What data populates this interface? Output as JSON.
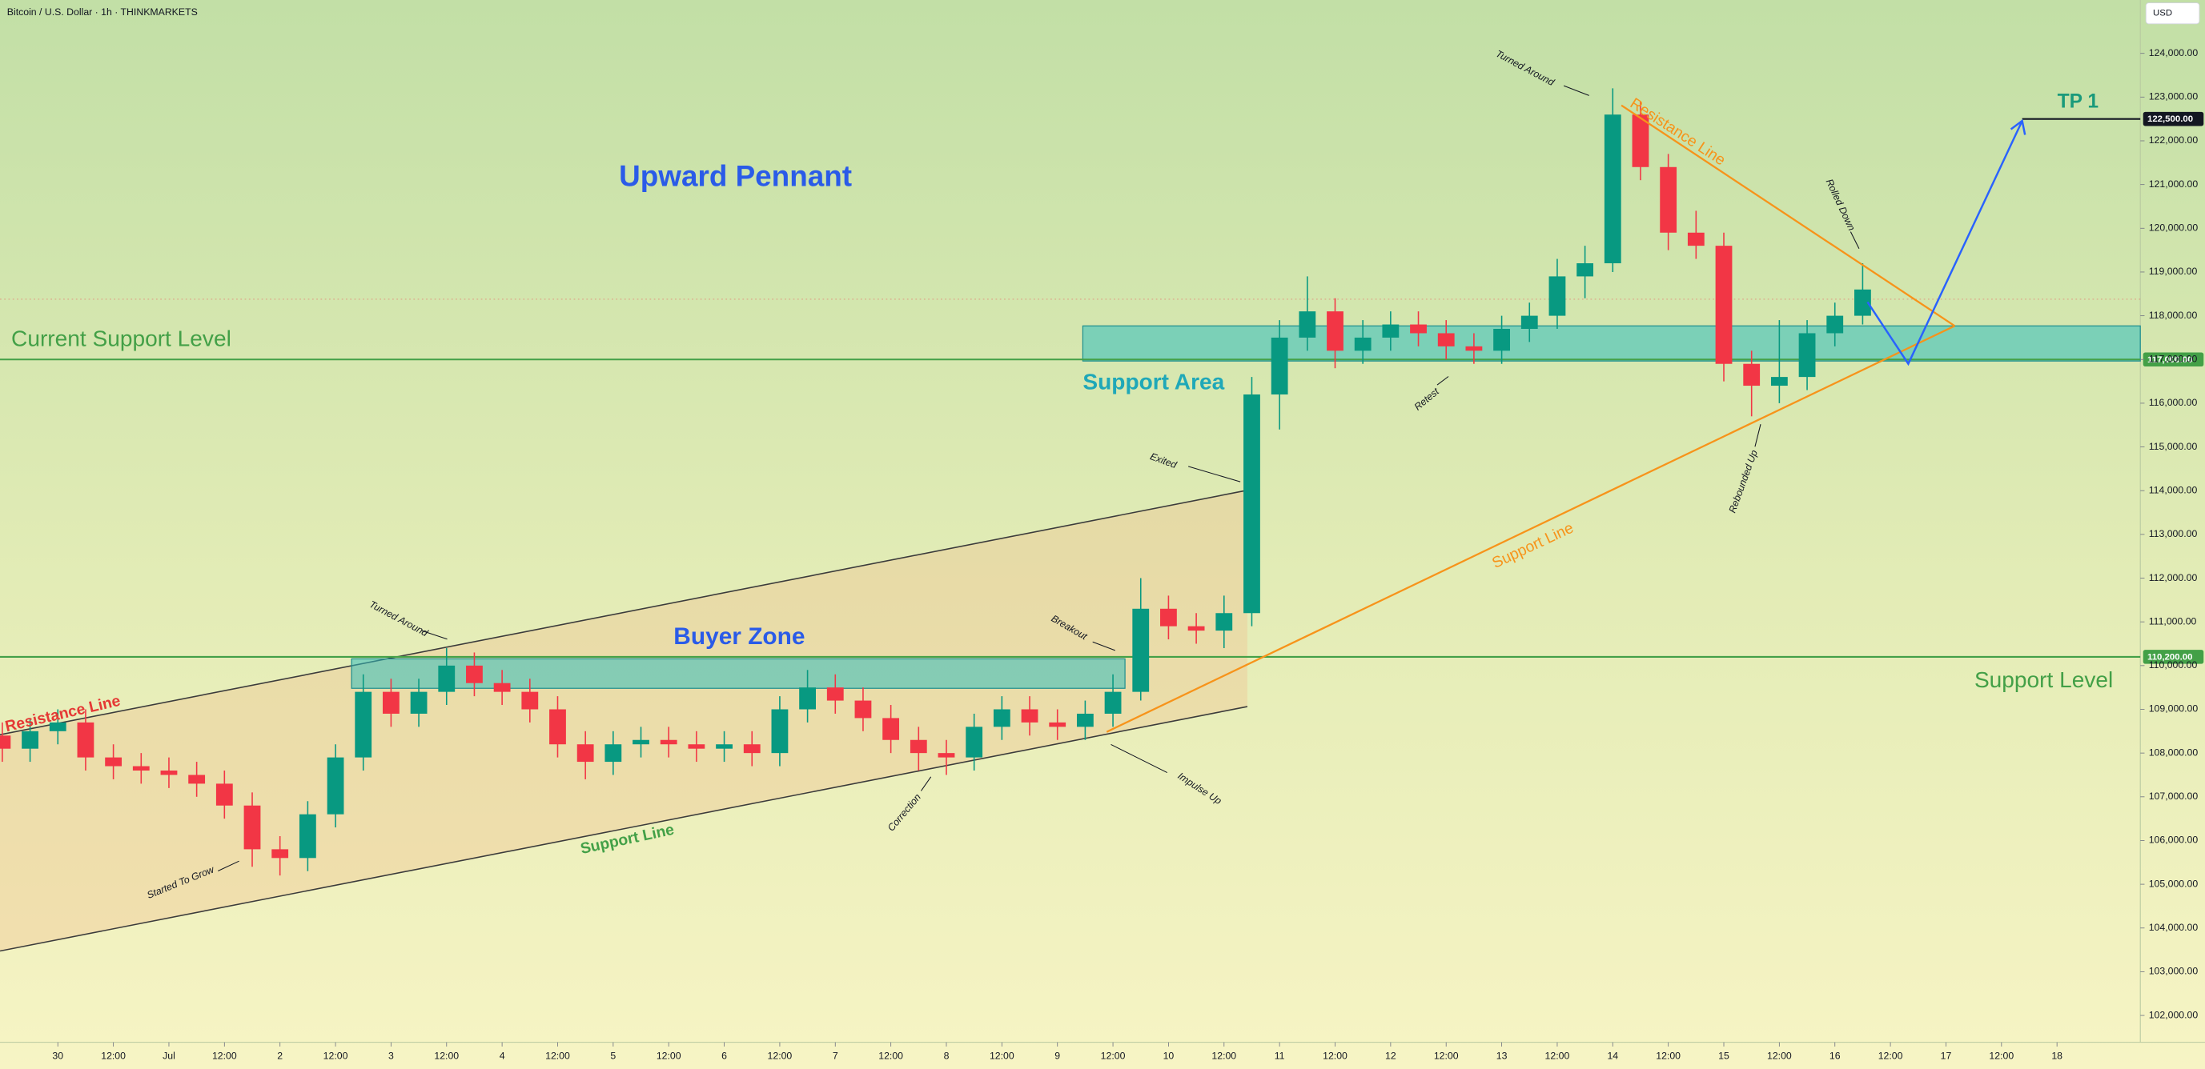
{
  "chart_data": {
    "type": "candlestick",
    "title": "Bitcoin / U.S. Dollar · 1h · THINKMARKETS",
    "currency": "USD",
    "up_color": "#089981",
    "down_color": "#f23645",
    "x": [
      -12,
      -6,
      0,
      6,
      12,
      18,
      24,
      30,
      36,
      42,
      48,
      54,
      60,
      66,
      72,
      78,
      84,
      90,
      96,
      102,
      108,
      114,
      120,
      126,
      132,
      138,
      144,
      150,
      156,
      162,
      168,
      174,
      180,
      186,
      192,
      198,
      204,
      210,
      216,
      222,
      228,
      234,
      240,
      246,
      252,
      258,
      264,
      270,
      276,
      282,
      288,
      294,
      300,
      306,
      312,
      318,
      324,
      330,
      336,
      342,
      348,
      354,
      360,
      366,
      372,
      378,
      384,
      390
    ],
    "open": [
      108400,
      108100,
      108500,
      108700,
      107900,
      107700,
      107600,
      107500,
      107300,
      106800,
      105800,
      105600,
      106600,
      107900,
      109400,
      108900,
      109400,
      110000,
      109600,
      109400,
      109000,
      108200,
      107800,
      108200,
      108300,
      108200,
      108100,
      108200,
      108000,
      109000,
      109500,
      109200,
      108800,
      108300,
      108000,
      107900,
      108600,
      109000,
      108700,
      108600,
      108900,
      109400,
      111300,
      110900,
      110800,
      111200,
      116200,
      117500,
      118100,
      117200,
      117500,
      117800,
      117600,
      117300,
      117200,
      117700,
      118000,
      118900,
      119200,
      122600,
      121400,
      119900,
      119600,
      116900,
      116400,
      116600,
      117600,
      118000
    ],
    "high": [
      108700,
      108800,
      109000,
      109000,
      108200,
      108000,
      107900,
      107800,
      107600,
      107100,
      106100,
      106900,
      108200,
      109800,
      109700,
      109700,
      110400,
      110300,
      109900,
      109700,
      109300,
      108500,
      108500,
      108600,
      108600,
      108500,
      108500,
      108500,
      109300,
      109900,
      109800,
      109500,
      109100,
      108600,
      108300,
      108900,
      109300,
      109300,
      109000,
      109200,
      109800,
      112000,
      111600,
      111200,
      111600,
      116600,
      117900,
      118900,
      118400,
      117900,
      118100,
      118100,
      117900,
      117600,
      118000,
      118300,
      119300,
      119600,
      123200,
      122900,
      121700,
      120400,
      119900,
      117200,
      117900,
      117900,
      118300,
      119200
    ],
    "low": [
      107800,
      107800,
      108200,
      107600,
      107400,
      107300,
      107200,
      107000,
      106500,
      105400,
      105200,
      105300,
      106300,
      107600,
      108600,
      108600,
      109100,
      109300,
      109100,
      108700,
      107900,
      107400,
      107500,
      107900,
      107900,
      107800,
      107800,
      107700,
      107700,
      108700,
      108900,
      108500,
      108000,
      107600,
      107500,
      107600,
      108300,
      108400,
      108300,
      108300,
      108600,
      109200,
      110600,
      110500,
      110400,
      110900,
      115400,
      117200,
      116800,
      116900,
      117200,
      117300,
      117000,
      116900,
      116900,
      117400,
      117700,
      118400,
      119000,
      121100,
      119500,
      119300,
      116500,
      115700,
      116000,
      116300,
      117300,
      117800
    ],
    "close": [
      108100,
      108500,
      108700,
      107900,
      107700,
      107600,
      107500,
      107300,
      106800,
      105800,
      105600,
      106600,
      107900,
      109400,
      108900,
      109400,
      110000,
      109600,
      109400,
      109000,
      108200,
      107800,
      108200,
      108300,
      108200,
      108100,
      108200,
      108000,
      109000,
      109500,
      109200,
      108800,
      108300,
      108000,
      107900,
      108600,
      109000,
      108700,
      108600,
      108900,
      109400,
      111300,
      110900,
      110800,
      111200,
      116200,
      117500,
      118100,
      117200,
      117500,
      117800,
      117600,
      117300,
      117200,
      117700,
      118000,
      118900,
      119200,
      122600,
      121400,
      119900,
      119600,
      116900,
      116400,
      116600,
      117600,
      118000,
      118600
    ],
    "xlim": [
      -12.5,
      450
    ],
    "xticks": [
      {
        "value": 0,
        "label": "30"
      },
      {
        "value": 12,
        "label": "12:00"
      },
      {
        "value": 24,
        "label": "Jul"
      },
      {
        "value": 36,
        "label": "12:00"
      },
      {
        "value": 48,
        "label": "2"
      },
      {
        "value": 60,
        "label": "12:00"
      },
      {
        "value": 72,
        "label": "3"
      },
      {
        "value": 84,
        "label": "12:00"
      },
      {
        "value": 96,
        "label": "4"
      },
      {
        "value": 108,
        "label": "12:00"
      },
      {
        "value": 120,
        "label": "5"
      },
      {
        "value": 132,
        "label": "12:00"
      },
      {
        "value": 144,
        "label": "6"
      },
      {
        "value": 156,
        "label": "12:00"
      },
      {
        "value": 168,
        "label": "7"
      },
      {
        "value": 180,
        "label": "12:00"
      },
      {
        "value": 192,
        "label": "8"
      },
      {
        "value": 204,
        "label": "12:00"
      },
      {
        "value": 216,
        "label": "9"
      },
      {
        "value": 228,
        "label": "12:00"
      },
      {
        "value": 240,
        "label": "10"
      },
      {
        "value": 252,
        "label": "12:00"
      },
      {
        "value": 264,
        "label": "11"
      },
      {
        "value": 276,
        "label": "12:00"
      },
      {
        "value": 288,
        "label": "12"
      },
      {
        "value": 300,
        "label": "12:00"
      },
      {
        "value": 312,
        "label": "13"
      },
      {
        "value": 324,
        "label": "12:00"
      },
      {
        "value": 336,
        "label": "14"
      },
      {
        "value": 348,
        "label": "12:00"
      },
      {
        "value": 360,
        "label": "15"
      },
      {
        "value": 372,
        "label": "12:00"
      },
      {
        "value": 384,
        "label": "16"
      },
      {
        "value": 396,
        "label": "12:00"
      },
      {
        "value": 408,
        "label": "17"
      },
      {
        "value": 420,
        "label": "12:00"
      },
      {
        "value": 432,
        "label": "18"
      }
    ],
    "ylim": [
      101450,
      125220
    ],
    "yticks": [
      {
        "value": 102000,
        "label": "102,000.00"
      },
      {
        "value": 103000,
        "label": "103,000.00"
      },
      {
        "value": 104000,
        "label": "104,000.00"
      },
      {
        "value": 105000,
        "label": "105,000.00"
      },
      {
        "value": 106000,
        "label": "106,000.00"
      },
      {
        "value": 107000,
        "label": "107,000.00"
      },
      {
        "value": 108000,
        "label": "108,000.00"
      },
      {
        "value": 109000,
        "label": "109,000.00"
      },
      {
        "value": 110000,
        "label": "110,000.00"
      },
      {
        "value": 111000,
        "label": "111,000.00"
      },
      {
        "value": 112000,
        "label": "112,000.00"
      },
      {
        "value": 113000,
        "label": "113,000.00"
      },
      {
        "value": 114000,
        "label": "114,000.00"
      },
      {
        "value": 115000,
        "label": "115,000.00"
      },
      {
        "value": 116000,
        "label": "116,000.00"
      },
      {
        "value": 117000,
        "label": "117,000.00"
      },
      {
        "value": 118000,
        "label": "118,000.00"
      },
      {
        "value": 119000,
        "label": "119,000.00"
      },
      {
        "value": 120000,
        "label": "120,000.00"
      },
      {
        "value": 121000,
        "label": "121,000.00"
      },
      {
        "value": 122000,
        "label": "122,000.00"
      },
      {
        "value": 123000,
        "label": "123,000.00"
      },
      {
        "value": 124000,
        "label": "124,000.00"
      }
    ],
    "levels": [
      {
        "value": 117000,
        "label": "117,000.00",
        "color": "#43a047"
      },
      {
        "value": 110200,
        "label": "110,200.00",
        "color": "#43a047"
      },
      {
        "value": 122500,
        "label": "122,500.00",
        "color": "#131722"
      }
    ],
    "texts": {
      "pattern": "Upward Pennant",
      "current_support": "Current Support Level",
      "support_area": "Support Area",
      "buyer_zone": "Buyer Zone",
      "support_level": "Support Level",
      "target": "TP 1",
      "channel_resistance": "Resistance Line",
      "channel_support": "Support Line",
      "pennant_resistance": "Resistance Line",
      "pennant_support": "Support Line"
    },
    "notes": [
      "Turned Around",
      "Started To Grow",
      "Correction",
      "Breakout",
      "Impulse Up",
      "Exited",
      "Retest",
      "Rebounded Up",
      "Rolled Down",
      "Turned Around"
    ]
  }
}
